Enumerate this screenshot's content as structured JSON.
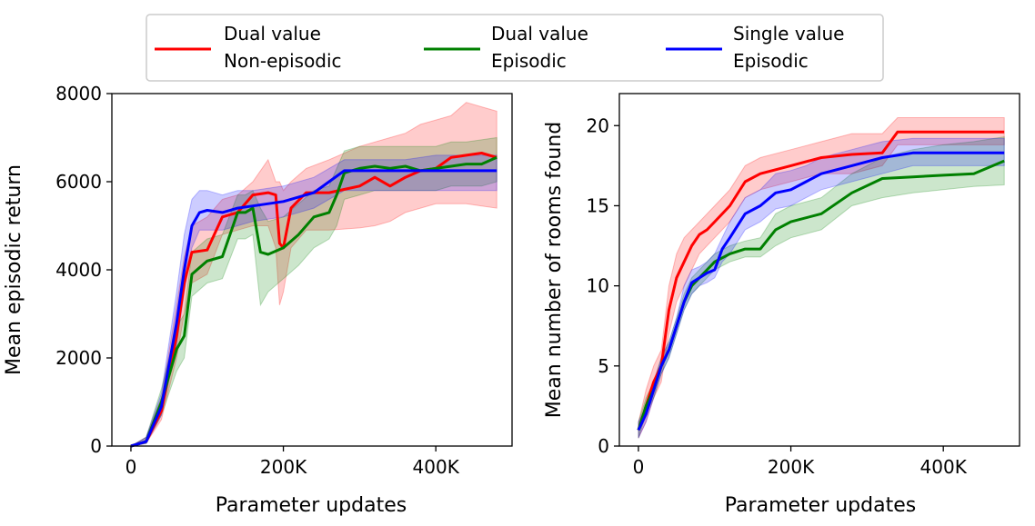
{
  "legend": {
    "placement": "top-center",
    "entries": [
      {
        "line1": "Dual value",
        "line2": "Non-episodic",
        "color": "#ff0000"
      },
      {
        "line1": "Dual value",
        "line2": "Episodic",
        "color": "#008000"
      },
      {
        "line1": "Single value",
        "line2": "Episodic",
        "color": "#0000ff"
      }
    ]
  },
  "chart_data": [
    {
      "type": "line",
      "title": "",
      "xlabel": "Parameter updates",
      "ylabel": "Mean episodic return",
      "xlim": [
        -25000,
        500000
      ],
      "ylim": [
        0,
        8000
      ],
      "xticks": [
        {
          "v": 0,
          "label": "0"
        },
        {
          "v": 200000,
          "label": "200K"
        },
        {
          "v": 400000,
          "label": "400K"
        }
      ],
      "yticks": [
        {
          "v": 0,
          "label": "0"
        },
        {
          "v": 2000,
          "label": "2000"
        },
        {
          "v": 4000,
          "label": "4000"
        },
        {
          "v": 6000,
          "label": "6000"
        },
        {
          "v": 8000,
          "label": "8000"
        }
      ],
      "series": [
        {
          "name": "Dual value Non-episodic",
          "color": "#ff0000",
          "x": [
            0,
            20000,
            40000,
            60000,
            70000,
            80000,
            100000,
            120000,
            140000,
            160000,
            180000,
            190000,
            195000,
            200000,
            210000,
            230000,
            260000,
            300000,
            320000,
            340000,
            360000,
            380000,
            400000,
            420000,
            440000,
            460000,
            480000
          ],
          "y": [
            0,
            100,
            800,
            2500,
            3700,
            4400,
            4450,
            5200,
            5300,
            5700,
            5750,
            5700,
            4600,
            4500,
            5400,
            5750,
            5750,
            5900,
            6100,
            5900,
            6100,
            6250,
            6300,
            6550,
            6600,
            6650,
            6550
          ],
          "lower": [
            0,
            60,
            600,
            2000,
            3000,
            3700,
            3900,
            4800,
            4900,
            5000,
            5000,
            4500,
            3200,
            3500,
            4500,
            4900,
            4900,
            4950,
            5000,
            5100,
            5300,
            5400,
            5500,
            5500,
            5500,
            5450,
            5400
          ],
          "upper": [
            0,
            200,
            1100,
            3200,
            4300,
            5000,
            5200,
            5600,
            5700,
            6000,
            6500,
            6000,
            6000,
            5800,
            6000,
            6300,
            6500,
            6800,
            6900,
            7000,
            7100,
            7300,
            7400,
            7500,
            7800,
            7700,
            7600
          ]
        },
        {
          "name": "Dual value Episodic",
          "color": "#008000",
          "x": [
            0,
            20000,
            40000,
            60000,
            70000,
            80000,
            100000,
            120000,
            140000,
            150000,
            160000,
            170000,
            180000,
            200000,
            220000,
            240000,
            260000,
            270000,
            280000,
            300000,
            320000,
            340000,
            360000,
            380000,
            400000,
            420000,
            440000,
            460000,
            480000
          ],
          "y": [
            0,
            100,
            1000,
            2200,
            2500,
            3900,
            4200,
            4300,
            5300,
            5300,
            5400,
            4400,
            4350,
            4500,
            4800,
            5200,
            5300,
            5700,
            6200,
            6300,
            6350,
            6300,
            6350,
            6250,
            6300,
            6350,
            6400,
            6400,
            6550
          ],
          "lower": [
            0,
            60,
            700,
            1700,
            2000,
            3400,
            3700,
            3800,
            4700,
            4700,
            4800,
            3200,
            3500,
            3800,
            4100,
            4500,
            4700,
            5000,
            5600,
            5700,
            5800,
            5800,
            5800,
            5800,
            5800,
            5900,
            5900,
            5900,
            6000
          ],
          "upper": [
            0,
            200,
            1300,
            2700,
            3000,
            4400,
            4700,
            4800,
            5700,
            5700,
            5800,
            5400,
            5100,
            5200,
            5500,
            5800,
            5900,
            6300,
            6700,
            6800,
            6800,
            6800,
            6800,
            6800,
            6800,
            6900,
            6900,
            6950,
            7000
          ]
        },
        {
          "name": "Single value Episodic",
          "color": "#0000ff",
          "x": [
            0,
            20000,
            40000,
            60000,
            70000,
            80000,
            90000,
            100000,
            120000,
            140000,
            160000,
            200000,
            240000,
            280000,
            300000,
            320000,
            360000,
            400000,
            440000,
            480000
          ],
          "y": [
            0,
            100,
            900,
            2800,
            4000,
            5000,
            5300,
            5350,
            5300,
            5400,
            5450,
            5550,
            5750,
            6250,
            6250,
            6250,
            6250,
            6250,
            6250,
            6250
          ],
          "lower": [
            0,
            60,
            700,
            2300,
            3500,
            4500,
            4900,
            4900,
            4900,
            5000,
            5100,
            5200,
            5400,
            5800,
            5800,
            5800,
            5800,
            5800,
            5800,
            5800
          ],
          "upper": [
            0,
            200,
            1200,
            3500,
            4800,
            5600,
            5800,
            5800,
            5700,
            5800,
            5800,
            5900,
            6100,
            6500,
            6500,
            6500,
            6500,
            6600,
            6600,
            6600
          ]
        }
      ]
    },
    {
      "type": "line",
      "title": "",
      "xlabel": "Parameter updates",
      "ylabel": "Mean number of rooms found",
      "xlim": [
        -25000,
        500000
      ],
      "ylim": [
        0,
        22
      ],
      "xticks": [
        {
          "v": 0,
          "label": "0"
        },
        {
          "v": 200000,
          "label": "200K"
        },
        {
          "v": 400000,
          "label": "400K"
        }
      ],
      "yticks": [
        {
          "v": 0,
          "label": "0"
        },
        {
          "v": 5,
          "label": "5"
        },
        {
          "v": 10,
          "label": "10"
        },
        {
          "v": 15,
          "label": "15"
        },
        {
          "v": 20,
          "label": "20"
        }
      ],
      "series": [
        {
          "name": "Dual value Non-episodic",
          "color": "#ff0000",
          "x": [
            0,
            10000,
            20000,
            30000,
            40000,
            50000,
            60000,
            70000,
            80000,
            90000,
            100000,
            120000,
            140000,
            160000,
            200000,
            240000,
            280000,
            320000,
            340000,
            360000,
            400000,
            440000,
            480000
          ],
          "y": [
            1,
            2.5,
            4,
            5,
            8.5,
            10.5,
            11.5,
            12.5,
            13.2,
            13.5,
            14,
            15,
            16.5,
            17,
            17.5,
            18,
            18.2,
            18.3,
            19.6,
            19.6,
            19.6,
            19.6,
            19.6
          ],
          "lower": [
            0.5,
            1.5,
            3,
            4,
            7,
            9,
            10,
            11,
            12,
            12.5,
            13,
            14,
            15.5,
            16,
            16.5,
            17,
            17,
            17.5,
            18.8,
            18.8,
            18.8,
            18.8,
            18.8
          ],
          "upper": [
            1.5,
            3.5,
            5,
            6,
            10,
            12,
            13,
            13.5,
            14,
            14.5,
            15,
            16,
            17.5,
            18,
            18.5,
            19,
            19.5,
            19.5,
            20.5,
            20.5,
            20.5,
            20.5,
            20.5
          ]
        },
        {
          "name": "Dual value Episodic",
          "color": "#008000",
          "x": [
            0,
            10000,
            20000,
            30000,
            40000,
            50000,
            60000,
            70000,
            80000,
            90000,
            100000,
            120000,
            140000,
            160000,
            180000,
            200000,
            240000,
            280000,
            320000,
            360000,
            400000,
            440000,
            480000
          ],
          "y": [
            1,
            2.5,
            3.5,
            5,
            6,
            7.5,
            9,
            10,
            10.5,
            11,
            11.5,
            12,
            12.3,
            12.3,
            13.5,
            14,
            14.5,
            15.8,
            16.7,
            16.8,
            16.9,
            17,
            17.8
          ],
          "lower": [
            0.5,
            2,
            3,
            4.5,
            5.5,
            7,
            8.5,
            9.5,
            10,
            10.5,
            11,
            11.5,
            11.8,
            11.8,
            12.5,
            13,
            13.5,
            15,
            15.5,
            15.8,
            16,
            16.2,
            16.3
          ],
          "upper": [
            1.5,
            3,
            4,
            5.5,
            6.5,
            8,
            9.5,
            10.5,
            11,
            11.5,
            12,
            12.5,
            12.8,
            13,
            14.5,
            15,
            15.5,
            17,
            18,
            18.5,
            18.8,
            19,
            19.3
          ]
        },
        {
          "name": "Single value Episodic",
          "color": "#0000ff",
          "x": [
            0,
            10000,
            20000,
            30000,
            40000,
            50000,
            60000,
            70000,
            80000,
            90000,
            100000,
            110000,
            120000,
            140000,
            160000,
            180000,
            200000,
            220000,
            240000,
            280000,
            320000,
            360000,
            400000,
            440000,
            480000
          ],
          "y": [
            1,
            2,
            3.5,
            5,
            6,
            7.5,
            9,
            10.2,
            10.5,
            10.8,
            11,
            12.3,
            13,
            14.5,
            15,
            15.8,
            16,
            16.5,
            17,
            17.5,
            18,
            18.3,
            18.3,
            18.3,
            18.3
          ],
          "lower": [
            0.5,
            1.5,
            3,
            4.5,
            5.5,
            7,
            8.5,
            9.5,
            10,
            10.2,
            10.5,
            11.5,
            12,
            13.5,
            14,
            14.8,
            15,
            15.5,
            16,
            16.5,
            17,
            17.5,
            17.5,
            17.5,
            17.5
          ],
          "upper": [
            1.5,
            2.5,
            4,
            5.5,
            6.5,
            8,
            10,
            11,
            11.2,
            11.5,
            12,
            13,
            14,
            15.5,
            16,
            17,
            17.2,
            17.5,
            18,
            18.5,
            19,
            19.2,
            19.2,
            19.2,
            19.2
          ]
        }
      ]
    }
  ]
}
